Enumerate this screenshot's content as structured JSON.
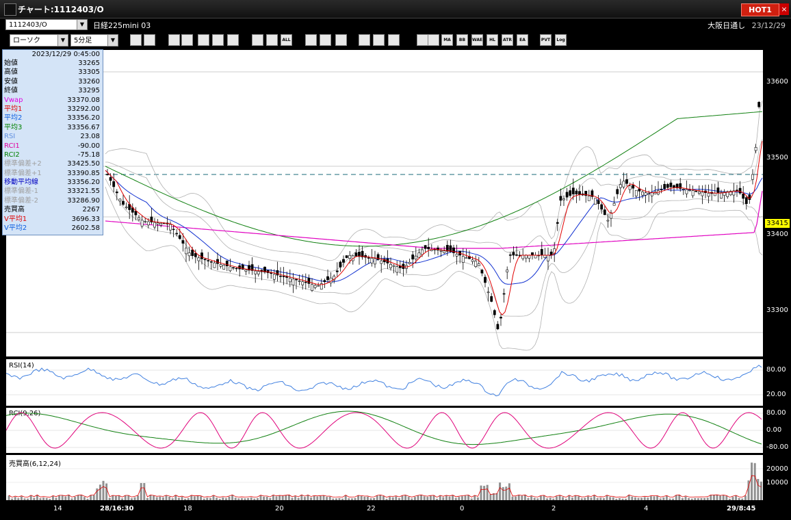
{
  "window": {
    "title": "チャート:1112403/O",
    "hot_label": "HOT1",
    "close_label": "×"
  },
  "symbol": {
    "code": "1112403/O",
    "name": "日経225mini 03",
    "chart_type": "ローソク",
    "timeframe": "5分足",
    "session": "大阪日通し",
    "date": "23/12/29"
  },
  "toolbar": {
    "icons": [
      "zoom-icon",
      "cursor-icon",
      "candle-icon",
      "q-icon",
      "bar-icon",
      "arrow-icon",
      "a-icon",
      "box1-icon",
      "box2-icon",
      "all-icon",
      "pen-icon",
      "pointer-icon",
      "eraser-icon",
      "gear-icon",
      "wrench-icon",
      "palette-icon",
      "color-icon",
      "sp-icon",
      "ma-icon",
      "bb-icon",
      "wae-icon",
      "hl-icon",
      "atr-icon",
      "ea-icon",
      "pvt-icon",
      "log-icon",
      "save-icon"
    ],
    "labels": [
      "",
      "",
      "",
      "",
      "",
      "",
      "",
      "",
      "",
      "ALL",
      "",
      "",
      "",
      "",
      "",
      "",
      "",
      "",
      "MA",
      "BB",
      "WAE",
      "HL",
      "ATR",
      "EA",
      "PVT",
      "Log",
      ""
    ]
  },
  "info": {
    "datetime": "2023/12/29 0:45:00",
    "rows": [
      {
        "label": "始値",
        "value": "33265",
        "color": "#000000"
      },
      {
        "label": "高値",
        "value": "33305",
        "color": "#000000"
      },
      {
        "label": "安値",
        "value": "33260",
        "color": "#000000"
      },
      {
        "label": "終値",
        "value": "33295",
        "color": "#000000"
      },
      {
        "label": "Vwap",
        "value": "33370.08",
        "color": "#e000e0"
      },
      {
        "label": "平均1",
        "value": "33292.00",
        "color": "#e00000"
      },
      {
        "label": "平均2",
        "value": "33356.20",
        "color": "#1060e0"
      },
      {
        "label": "平均3",
        "value": "33356.67",
        "color": "#008000"
      },
      {
        "label": "RSI",
        "value": "23.08",
        "color": "#6090e0"
      },
      {
        "label": "RCI1",
        "value": "-90.00",
        "color": "#e000a0"
      },
      {
        "label": "RCI2",
        "value": "-75.18",
        "color": "#008000"
      },
      {
        "label": "標準偏差+2",
        "value": "33425.50",
        "color": "#a0a0a0"
      },
      {
        "label": "標準偏差+1",
        "value": "33390.85",
        "color": "#a0a0a0"
      },
      {
        "label": "移動平均線",
        "value": "33356.20",
        "color": "#0000c0"
      },
      {
        "label": "標準偏差-1",
        "value": "33321.55",
        "color": "#a0a0a0"
      },
      {
        "label": "標準偏差-2",
        "value": "33286.90",
        "color": "#a0a0a0"
      },
      {
        "label": "売買高",
        "value": "2267",
        "color": "#000000"
      },
      {
        "label": "V平均1",
        "value": "3696.33",
        "color": "#e00000"
      },
      {
        "label": "V平均2",
        "value": "2602.58",
        "color": "#1060e0"
      }
    ]
  },
  "price_axis": {
    "ticks": [
      "33600",
      "33500",
      "33400",
      "33300"
    ],
    "current": "33415"
  },
  "rsi_panel": {
    "label": "RSI(14)",
    "ticks": [
      "80.00",
      "20.00"
    ]
  },
  "rci_panel": {
    "label": "RCI(9,26)",
    "ticks": [
      "80.00",
      "0.00",
      "-80.00"
    ]
  },
  "volume_panel": {
    "label": "売買高(6,12,24)",
    "ticks": [
      "20000",
      "10000"
    ]
  },
  "x_axis": {
    "labels": [
      "14",
      "28/16:30",
      "18",
      "20",
      "22",
      "0",
      "2",
      "4",
      "29/8:45"
    ]
  },
  "colors": {
    "ma_short": "#e00000",
    "ma_mid": "#1030d0",
    "ma_long": "#108010",
    "vwap": "#e000c0",
    "bollinger": "#a0a0a0",
    "rsi": "#4080e0",
    "rci1": "#e0007a",
    "rci2": "#108010"
  }
}
